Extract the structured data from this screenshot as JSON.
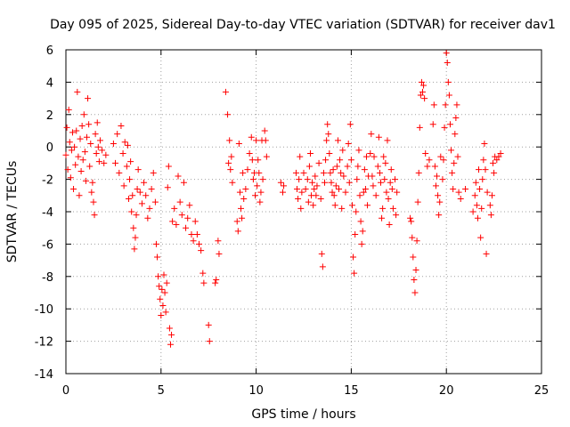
{
  "chart_data": {
    "type": "scatter",
    "title": "Day 095 of 2025, Sidereal Day-to-day VTEC variation (SDTVAR) for receiver dav1",
    "xlabel": "GPS time / hours",
    "ylabel": "SDTVAR / TECUs",
    "xlim": [
      0,
      25
    ],
    "ylim": [
      -14,
      6
    ],
    "xticks": [
      "0",
      "5",
      "10",
      "15",
      "20",
      "25"
    ],
    "yticks": [
      "-14",
      "-12",
      "-10",
      "-8",
      "-6",
      "-4",
      "-2",
      "0",
      "2",
      "4",
      "6"
    ],
    "grid": true,
    "marker": "+",
    "marker_color": "#ff0000",
    "series": [
      {
        "name": "dav1",
        "points": [
          [
            0.0,
            -0.5
          ],
          [
            0.05,
            1.2
          ],
          [
            0.1,
            -1.4
          ],
          [
            0.15,
            2.3
          ],
          [
            0.2,
            0.3
          ],
          [
            0.25,
            -1.9
          ],
          [
            0.3,
            -0.2
          ],
          [
            0.35,
            0.9
          ],
          [
            0.4,
            -2.6
          ],
          [
            0.45,
            0.0
          ],
          [
            0.5,
            -1.1
          ],
          [
            0.55,
            1.0
          ],
          [
            0.6,
            3.4
          ],
          [
            0.65,
            -0.6
          ],
          [
            0.7,
            -3.0
          ],
          [
            0.75,
            0.5
          ],
          [
            0.8,
            -1.5
          ],
          [
            0.85,
            1.3
          ],
          [
            0.9,
            -0.8
          ],
          [
            0.95,
            2.0
          ],
          [
            1.0,
            -0.3
          ],
          [
            1.05,
            -2.1
          ],
          [
            1.1,
            0.6
          ],
          [
            1.15,
            3.0
          ],
          [
            1.2,
            1.4
          ],
          [
            1.25,
            -1.2
          ],
          [
            1.3,
            0.2
          ],
          [
            1.35,
            -2.8
          ],
          [
            1.4,
            -2.2
          ],
          [
            1.45,
            -3.4
          ],
          [
            1.5,
            -4.2
          ],
          [
            1.55,
            0.8
          ],
          [
            1.6,
            -0.4
          ],
          [
            1.65,
            1.5
          ],
          [
            1.7,
            0.0
          ],
          [
            1.75,
            -0.9
          ],
          [
            1.8,
            0.4
          ],
          [
            1.9,
            -0.2
          ],
          [
            2.0,
            -1.0
          ],
          [
            2.1,
            -0.5
          ],
          [
            2.5,
            0.2
          ],
          [
            2.6,
            -1.0
          ],
          [
            2.7,
            0.8
          ],
          [
            2.8,
            -1.6
          ],
          [
            2.9,
            1.3
          ],
          [
            3.0,
            -0.4
          ],
          [
            3.05,
            -2.4
          ],
          [
            3.1,
            0.3
          ],
          [
            3.2,
            -1.2
          ],
          [
            3.25,
            0.1
          ],
          [
            3.3,
            -3.2
          ],
          [
            3.35,
            -2.0
          ],
          [
            3.4,
            -0.9
          ],
          [
            3.45,
            -4.0
          ],
          [
            3.5,
            -3.0
          ],
          [
            3.55,
            -5.0
          ],
          [
            3.6,
            -6.3
          ],
          [
            3.65,
            -5.6
          ],
          [
            3.7,
            -4.2
          ],
          [
            3.75,
            -2.6
          ],
          [
            3.8,
            -1.4
          ],
          [
            3.9,
            -2.8
          ],
          [
            4.0,
            -3.5
          ],
          [
            4.1,
            -2.2
          ],
          [
            4.2,
            -3.0
          ],
          [
            4.3,
            -4.4
          ],
          [
            4.4,
            -3.8
          ],
          [
            4.5,
            -2.6
          ],
          [
            4.6,
            -1.6
          ],
          [
            4.7,
            -3.4
          ],
          [
            4.75,
            -6.0
          ],
          [
            4.8,
            -6.8
          ],
          [
            4.85,
            -8.0
          ],
          [
            4.9,
            -8.6
          ],
          [
            4.95,
            -9.4
          ],
          [
            5.0,
            -10.4
          ],
          [
            5.05,
            -8.8
          ],
          [
            5.1,
            -9.8
          ],
          [
            5.15,
            -7.9
          ],
          [
            5.2,
            -9.0
          ],
          [
            5.25,
            -10.2
          ],
          [
            5.3,
            -8.4
          ],
          [
            5.35,
            -2.5
          ],
          [
            5.4,
            -1.2
          ],
          [
            5.45,
            -11.2
          ],
          [
            5.5,
            -12.2
          ],
          [
            5.55,
            -11.6
          ],
          [
            5.6,
            -4.6
          ],
          [
            5.7,
            -3.8
          ],
          [
            5.8,
            -4.8
          ],
          [
            5.9,
            -1.8
          ],
          [
            6.0,
            -3.4
          ],
          [
            6.1,
            -4.2
          ],
          [
            6.2,
            -2.2
          ],
          [
            6.3,
            -5.0
          ],
          [
            6.4,
            -4.4
          ],
          [
            6.5,
            -3.6
          ],
          [
            6.6,
            -5.4
          ],
          [
            6.7,
            -5.8
          ],
          [
            6.8,
            -4.6
          ],
          [
            6.9,
            -5.4
          ],
          [
            7.0,
            -6.0
          ],
          [
            7.1,
            -6.4
          ],
          [
            7.2,
            -7.8
          ],
          [
            7.25,
            -8.4
          ],
          [
            7.5,
            -11.0
          ],
          [
            7.55,
            -12.0
          ],
          [
            7.85,
            -8.4
          ],
          [
            7.9,
            -8.2
          ],
          [
            8.0,
            -5.8
          ],
          [
            8.05,
            -6.6
          ],
          [
            8.4,
            3.4
          ],
          [
            8.5,
            2.0
          ],
          [
            8.55,
            -1.0
          ],
          [
            8.6,
            0.4
          ],
          [
            8.65,
            -1.4
          ],
          [
            8.7,
            -0.6
          ],
          [
            8.75,
            -2.2
          ],
          [
            9.0,
            -4.6
          ],
          [
            9.05,
            -5.2
          ],
          [
            9.1,
            0.2
          ],
          [
            9.15,
            -2.8
          ],
          [
            9.2,
            -3.8
          ],
          [
            9.25,
            -4.4
          ],
          [
            9.3,
            -1.6
          ],
          [
            9.35,
            -3.2
          ],
          [
            9.45,
            -2.6
          ],
          [
            9.55,
            -1.4
          ],
          [
            9.65,
            -0.4
          ],
          [
            9.75,
            0.6
          ],
          [
            9.8,
            -0.8
          ],
          [
            9.85,
            -2.0
          ],
          [
            9.9,
            -1.6
          ],
          [
            9.95,
            -3.0
          ],
          [
            10.0,
            0.4
          ],
          [
            10.05,
            -2.4
          ],
          [
            10.1,
            -0.8
          ],
          [
            10.15,
            -1.6
          ],
          [
            10.2,
            -3.4
          ],
          [
            10.25,
            -2.8
          ],
          [
            10.3,
            0.4
          ],
          [
            10.35,
            -2.0
          ],
          [
            10.45,
            1.0
          ],
          [
            10.5,
            0.4
          ],
          [
            10.55,
            -0.6
          ],
          [
            11.3,
            -2.2
          ],
          [
            11.4,
            -2.8
          ],
          [
            11.45,
            -2.4
          ],
          [
            12.1,
            -1.6
          ],
          [
            12.15,
            -2.6
          ],
          [
            12.2,
            -3.2
          ],
          [
            12.25,
            -2.0
          ],
          [
            12.3,
            -0.6
          ],
          [
            12.35,
            -3.8
          ],
          [
            12.4,
            -2.8
          ],
          [
            12.5,
            -1.6
          ],
          [
            12.6,
            -2.6
          ],
          [
            12.7,
            -2.0
          ],
          [
            12.75,
            -3.4
          ],
          [
            12.8,
            -1.2
          ],
          [
            12.85,
            -0.4
          ],
          [
            12.9,
            -3.0
          ],
          [
            12.95,
            -2.2
          ],
          [
            13.0,
            -3.6
          ],
          [
            13.05,
            -2.6
          ],
          [
            13.1,
            -1.8
          ],
          [
            13.15,
            -3.0
          ],
          [
            13.2,
            -2.4
          ],
          [
            13.3,
            -1.0
          ],
          [
            13.4,
            -3.2
          ],
          [
            13.45,
            -6.6
          ],
          [
            13.5,
            -7.4
          ],
          [
            13.55,
            -1.6
          ],
          [
            13.6,
            -2.2
          ],
          [
            13.65,
            -0.8
          ],
          [
            13.7,
            0.4
          ],
          [
            13.75,
            1.4
          ],
          [
            13.8,
            0.8
          ],
          [
            13.85,
            -0.4
          ],
          [
            13.9,
            -1.6
          ],
          [
            13.95,
            -2.2
          ],
          [
            14.0,
            -2.8
          ],
          [
            14.05,
            -1.4
          ],
          [
            14.1,
            -3.0
          ],
          [
            14.15,
            -3.6
          ],
          [
            14.2,
            -2.4
          ],
          [
            14.25,
            -1.2
          ],
          [
            14.3,
            0.4
          ],
          [
            14.35,
            -2.6
          ],
          [
            14.4,
            -0.8
          ],
          [
            14.45,
            -1.6
          ],
          [
            14.5,
            -3.8
          ],
          [
            14.55,
            -0.2
          ],
          [
            14.6,
            -1.8
          ],
          [
            14.7,
            -2.8
          ],
          [
            14.8,
            -1.2
          ],
          [
            14.85,
            0.2
          ],
          [
            14.9,
            -2.2
          ],
          [
            14.95,
            1.4
          ],
          [
            15.0,
            -0.8
          ],
          [
            15.05,
            -3.6
          ],
          [
            15.1,
            -6.8
          ],
          [
            15.15,
            -7.8
          ],
          [
            15.2,
            -5.4
          ],
          [
            15.25,
            -4.0
          ],
          [
            15.3,
            -2.0
          ],
          [
            15.35,
            -1.2
          ],
          [
            15.4,
            -0.2
          ],
          [
            15.45,
            -3.0
          ],
          [
            15.5,
            -4.6
          ],
          [
            15.55,
            -6.0
          ],
          [
            15.6,
            -5.2
          ],
          [
            15.65,
            -2.8
          ],
          [
            15.7,
            -1.4
          ],
          [
            15.75,
            -2.6
          ],
          [
            15.8,
            -0.6
          ],
          [
            15.85,
            -3.6
          ],
          [
            15.9,
            -1.8
          ],
          [
            16.0,
            -0.4
          ],
          [
            16.05,
            0.8
          ],
          [
            16.1,
            -1.8
          ],
          [
            16.15,
            -2.4
          ],
          [
            16.2,
            -0.6
          ],
          [
            16.3,
            -3.0
          ],
          [
            16.4,
            -1.2
          ],
          [
            16.45,
            0.6
          ],
          [
            16.5,
            -1.6
          ],
          [
            16.55,
            -2.2
          ],
          [
            16.6,
            -4.4
          ],
          [
            16.65,
            -3.8
          ],
          [
            16.7,
            -0.6
          ],
          [
            16.75,
            -2.0
          ],
          [
            16.8,
            -1.0
          ],
          [
            16.85,
            -2.8
          ],
          [
            16.9,
            0.4
          ],
          [
            16.95,
            -3.2
          ],
          [
            17.0,
            -4.8
          ],
          [
            17.05,
            -2.2
          ],
          [
            17.1,
            -1.4
          ],
          [
            17.15,
            -2.6
          ],
          [
            17.2,
            -3.8
          ],
          [
            17.3,
            -2.0
          ],
          [
            17.35,
            -4.2
          ],
          [
            17.4,
            -2.8
          ],
          [
            18.1,
            -4.4
          ],
          [
            18.15,
            -4.6
          ],
          [
            18.2,
            -5.6
          ],
          [
            18.25,
            -6.8
          ],
          [
            18.3,
            -8.2
          ],
          [
            18.35,
            -9.0
          ],
          [
            18.4,
            -7.6
          ],
          [
            18.45,
            -5.8
          ],
          [
            18.5,
            -3.4
          ],
          [
            18.55,
            -1.6
          ],
          [
            18.6,
            1.2
          ],
          [
            18.65,
            3.2
          ],
          [
            18.7,
            4.0
          ],
          [
            18.75,
            3.4
          ],
          [
            18.8,
            3.8
          ],
          [
            18.85,
            3.0
          ],
          [
            18.9,
            -0.4
          ],
          [
            19.0,
            -1.2
          ],
          [
            19.1,
            -0.8
          ],
          [
            19.3,
            1.4
          ],
          [
            19.35,
            2.6
          ],
          [
            19.4,
            -1.2
          ],
          [
            19.45,
            -2.4
          ],
          [
            19.5,
            -1.8
          ],
          [
            19.55,
            -3.0
          ],
          [
            19.6,
            -4.2
          ],
          [
            19.65,
            -3.4
          ],
          [
            19.7,
            -0.6
          ],
          [
            19.8,
            -2.0
          ],
          [
            19.85,
            -0.8
          ],
          [
            19.9,
            1.2
          ],
          [
            19.95,
            2.6
          ],
          [
            20.0,
            5.8
          ],
          [
            20.05,
            5.2
          ],
          [
            20.1,
            4.0
          ],
          [
            20.15,
            3.2
          ],
          [
            20.2,
            1.4
          ],
          [
            20.25,
            -0.2
          ],
          [
            20.3,
            -1.6
          ],
          [
            20.35,
            -2.6
          ],
          [
            20.4,
            -1.0
          ],
          [
            20.45,
            0.8
          ],
          [
            20.5,
            1.8
          ],
          [
            20.55,
            2.6
          ],
          [
            20.6,
            -0.6
          ],
          [
            20.65,
            -2.8
          ],
          [
            20.75,
            -3.2
          ],
          [
            21.0,
            -2.6
          ],
          [
            21.4,
            -4.0
          ],
          [
            21.5,
            -3.0
          ],
          [
            21.55,
            -2.2
          ],
          [
            21.6,
            -3.6
          ],
          [
            21.65,
            -4.4
          ],
          [
            21.7,
            -1.4
          ],
          [
            21.75,
            -2.6
          ],
          [
            21.8,
            -5.6
          ],
          [
            21.85,
            -3.8
          ],
          [
            21.9,
            -2.0
          ],
          [
            21.95,
            -0.8
          ],
          [
            22.0,
            0.2
          ],
          [
            22.05,
            -1.4
          ],
          [
            22.1,
            -6.6
          ],
          [
            22.15,
            -2.8
          ],
          [
            22.3,
            -3.6
          ],
          [
            22.35,
            -4.2
          ],
          [
            22.4,
            -3.0
          ],
          [
            22.45,
            -1.0
          ],
          [
            22.5,
            -1.6
          ],
          [
            22.55,
            -0.6
          ],
          [
            22.65,
            -0.8
          ],
          [
            22.75,
            -0.6
          ],
          [
            22.85,
            -0.4
          ]
        ]
      }
    ]
  }
}
